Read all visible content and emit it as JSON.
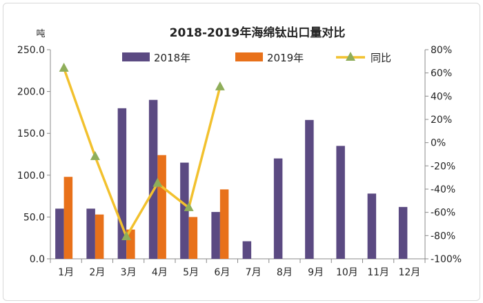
{
  "chart_data": {
    "type": "bar",
    "title": "2018-2019年海绵钛出口量对比",
    "ylabel": "吨",
    "ylim": [
      0,
      250
    ],
    "y_ticks": [
      "0.0",
      "50.0",
      "100.0",
      "150.0",
      "200.0",
      "250.0"
    ],
    "y2lim": [
      -100,
      80
    ],
    "y2_ticks": [
      "-100%",
      "-80%",
      "-60%",
      "-40%",
      "-20%",
      "0%",
      "20%",
      "40%",
      "60%",
      "80%"
    ],
    "categories": [
      "1月",
      "2月",
      "3月",
      "4月",
      "5月",
      "6月",
      "7月",
      "8月",
      "9月",
      "10月",
      "11月",
      "12月"
    ],
    "series": [
      {
        "name": "2018年",
        "type": "bar",
        "color": "#5b4a82",
        "values": [
          60,
          60,
          180,
          190,
          115,
          56,
          21,
          120,
          166,
          135,
          78,
          62
        ]
      },
      {
        "name": "2019年",
        "type": "bar",
        "color": "#e8711a",
        "values": [
          98,
          53,
          35,
          124,
          50,
          83,
          null,
          null,
          null,
          null,
          null,
          null
        ]
      },
      {
        "name": "同比",
        "type": "line",
        "axis": "right",
        "color": "#f2c12e",
        "marker_color": "#8fae5a",
        "values": [
          64,
          -12,
          -81,
          -35,
          -56,
          48,
          null,
          null,
          null,
          null,
          null,
          null
        ]
      }
    ],
    "legend": "top-center",
    "grid": false
  }
}
